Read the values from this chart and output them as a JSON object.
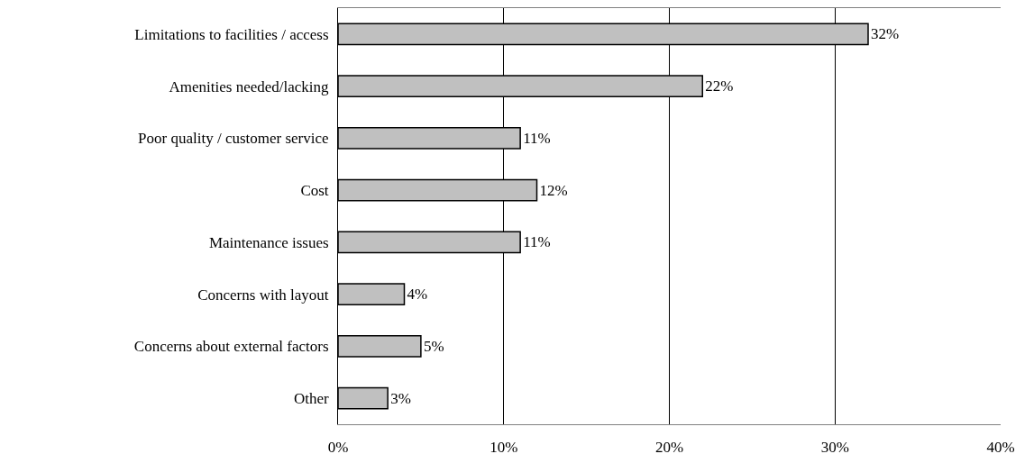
{
  "chart_data": {
    "type": "bar",
    "orientation": "horizontal",
    "categories": [
      "Limitations to facilities / access",
      "Amenities needed/lacking",
      "Poor quality / customer service",
      "Cost",
      "Maintenance issues",
      "Concerns with layout",
      "Concerns about external factors",
      "Other"
    ],
    "values": [
      32,
      22,
      11,
      12,
      11,
      4,
      5,
      3
    ],
    "value_labels": [
      "32%",
      "22%",
      "11%",
      "12%",
      "11%",
      "4%",
      "5%",
      "3%"
    ],
    "color": "#c0c0c0",
    "xlim": [
      0,
      40
    ],
    "xticks": [
      {
        "value": 0,
        "label": "0%"
      },
      {
        "value": 10,
        "label": "10%"
      },
      {
        "value": 20,
        "label": "20%"
      },
      {
        "value": 30,
        "label": "30%"
      },
      {
        "value": 40,
        "label": "40%"
      }
    ],
    "grid": "x",
    "legend": false
  }
}
